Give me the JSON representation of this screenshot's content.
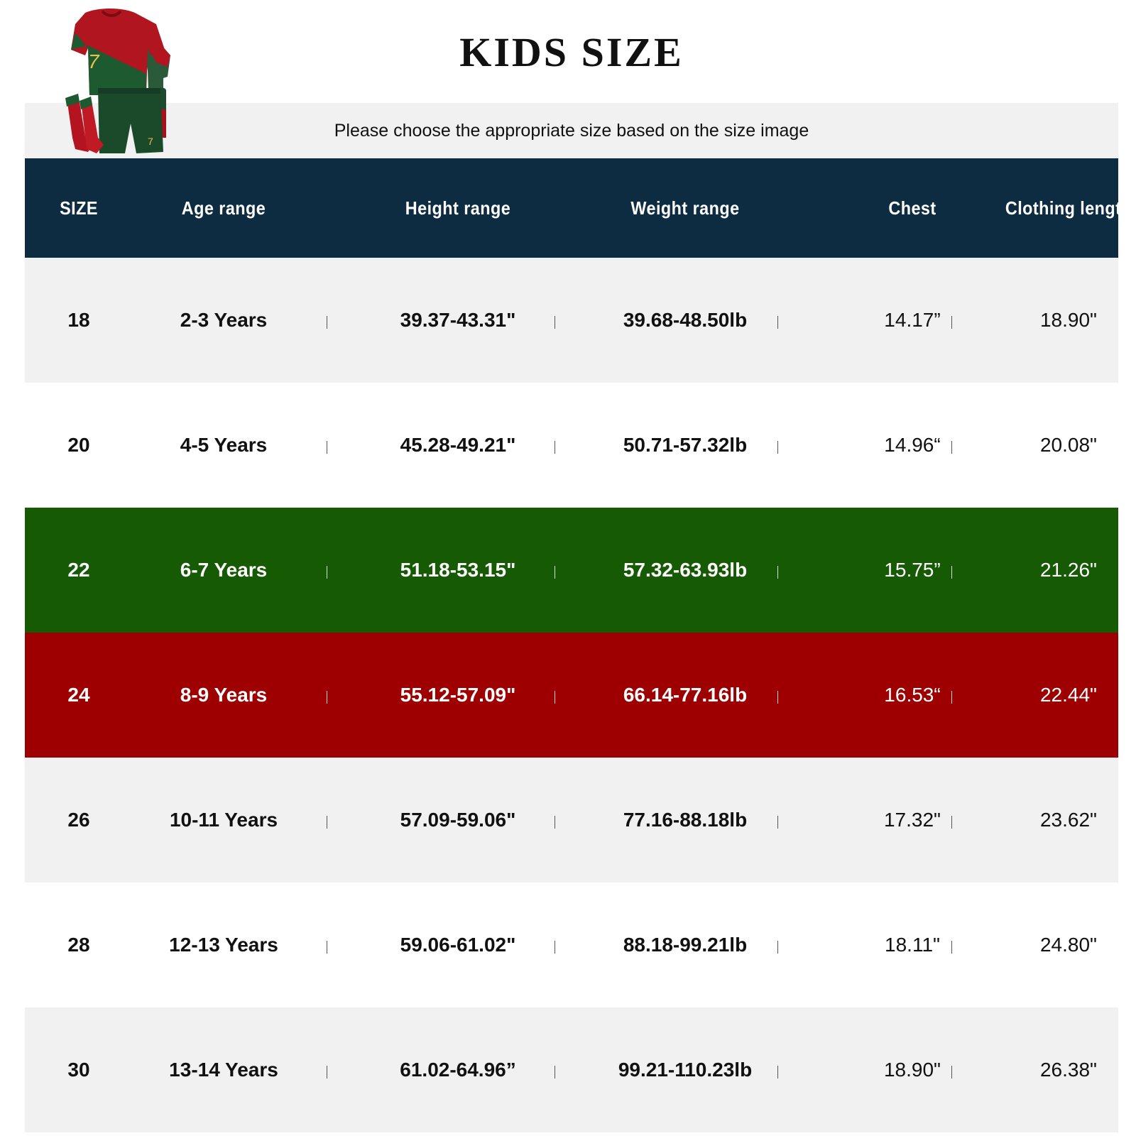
{
  "title": "KIDS SIZE",
  "subtitle": "Please choose the appropriate size based on the size image",
  "illustration": "football-kit-jersey-shorts-socks",
  "colors": {
    "header_bg": "#0d2c41",
    "row_light": "#f1f1f1",
    "row_white": "#ffffff",
    "row_green": "#165a04",
    "row_red": "#9e0001"
  },
  "headers": [
    "SIZE",
    "Age range",
    "Height range",
    "Weight range",
    "Chest",
    "Clothing length"
  ],
  "rows": [
    {
      "size": "18",
      "age": "2-3 Years",
      "height": "39.37-43.31\"",
      "weight": "39.68-48.50lb",
      "chest": "14.17”",
      "length": "18.90\"",
      "bg": "#f1f1f1",
      "text": "dark"
    },
    {
      "size": "20",
      "age": "4-5 Years",
      "height": "45.28-49.21\"",
      "weight": "50.71-57.32lb",
      "chest": "14.96“",
      "length": "20.08\"",
      "bg": "#ffffff",
      "text": "dark"
    },
    {
      "size": "22",
      "age": "6-7 Years",
      "height": "51.18-53.15\"",
      "weight": "57.32-63.93lb",
      "chest": "15.75”",
      "length": "21.26\"",
      "bg": "#165a04",
      "text": "light"
    },
    {
      "size": "24",
      "age": "8-9 Years",
      "height": "55.12-57.09\"",
      "weight": "66.14-77.16lb",
      "chest": "16.53“",
      "length": "22.44\"",
      "bg": "#9e0001",
      "text": "light"
    },
    {
      "size": "26",
      "age": "10-11 Years",
      "height": "57.09-59.06\"",
      "weight": "77.16-88.18lb",
      "chest": "17.32\"",
      "length": "23.62\"",
      "bg": "#f1f1f1",
      "text": "dark"
    },
    {
      "size": "28",
      "age": "12-13 Years",
      "height": "59.06-61.02\"",
      "weight": "88.18-99.21lb",
      "chest": "18.11\"",
      "length": "24.80\"",
      "bg": "#ffffff",
      "text": "dark"
    },
    {
      "size": "30",
      "age": "13-14 Years",
      "height": "61.02-64.96”",
      "weight": "99.21-110.23lb",
      "chest": "18.90\"",
      "length": "26.38\"",
      "bg": "#f1f1f1",
      "text": "dark"
    }
  ]
}
